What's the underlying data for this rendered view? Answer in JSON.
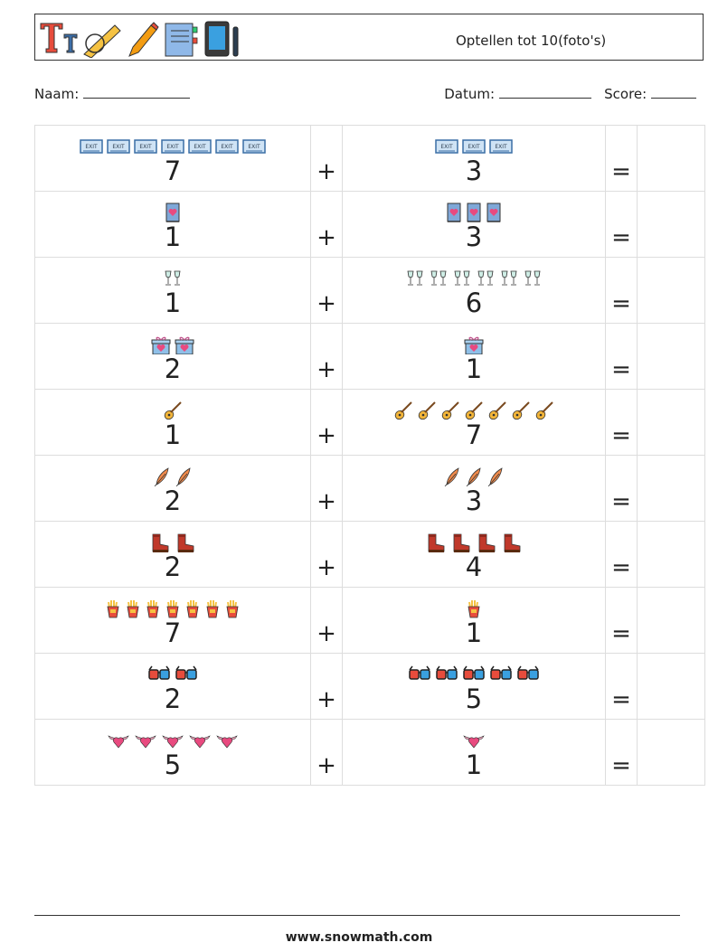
{
  "header": {
    "title": "Optellen tot 10(foto's)",
    "icons": [
      "text-tt-icon",
      "protractor-icon",
      "pencil-icon",
      "notebook-icon",
      "tablet-icon"
    ]
  },
  "info": {
    "name_label": "Naam:",
    "date_label": "Datum:",
    "score_label": "Score:"
  },
  "operators": {
    "plus": "+",
    "equals": "="
  },
  "rows": [
    {
      "icon": "exit-sign",
      "a": 7,
      "b": 3,
      "a_text": "7",
      "b_text": "3"
    },
    {
      "icon": "heart-book",
      "a": 1,
      "b": 3,
      "a_text": "1",
      "b_text": "3"
    },
    {
      "icon": "champagne-glasses",
      "a": 1,
      "b": 6,
      "a_text": "1",
      "b_text": "6"
    },
    {
      "icon": "gift-box",
      "a": 2,
      "b": 1,
      "a_text": "2",
      "b_text": "1"
    },
    {
      "icon": "guitar",
      "a": 1,
      "b": 7,
      "a_text": "1",
      "b_text": "7"
    },
    {
      "icon": "feather-quill",
      "a": 2,
      "b": 3,
      "a_text": "2",
      "b_text": "3"
    },
    {
      "icon": "boot",
      "a": 2,
      "b": 4,
      "a_text": "2",
      "b_text": "4"
    },
    {
      "icon": "fries",
      "a": 7,
      "b": 1,
      "a_text": "7",
      "b_text": "1"
    },
    {
      "icon": "3d-glasses",
      "a": 2,
      "b": 5,
      "a_text": "2",
      "b_text": "5"
    },
    {
      "icon": "winged-heart",
      "a": 5,
      "b": 1,
      "a_text": "5",
      "b_text": "1"
    }
  ],
  "footer": {
    "text": "www.snowmath.com"
  }
}
